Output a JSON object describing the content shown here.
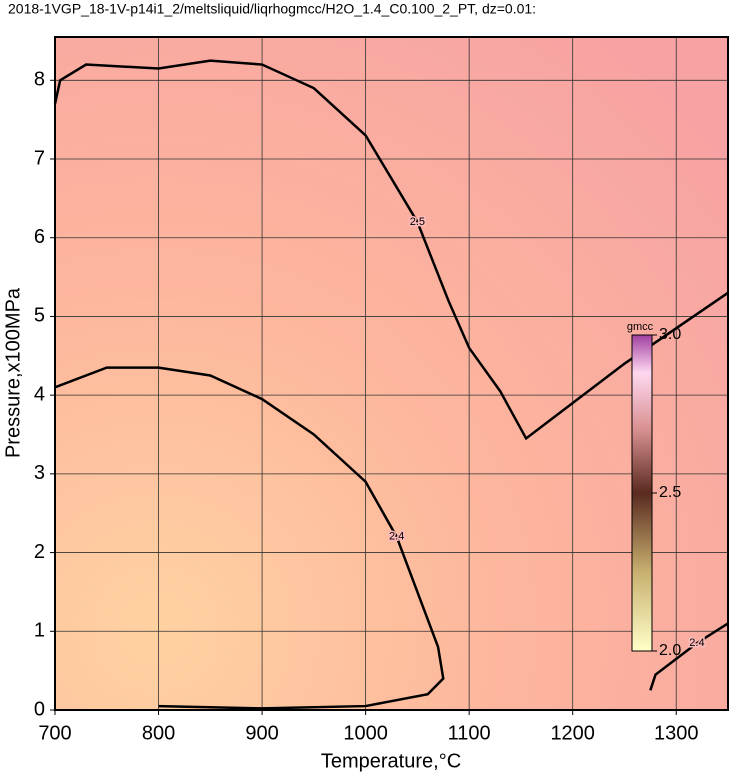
{
  "chart_data": {
    "type": "contour",
    "title": "2018-1VGP_18-1V-p14i1_2/meltsliquid/liqrhogmcc/H2O_1.4_C0.100_2_PT, dz=0.01:",
    "xlabel": "Temperature,°C",
    "ylabel": "Pressure,x100MPa",
    "xlim": [
      700,
      1350
    ],
    "ylim": [
      0,
      8.55
    ],
    "xticks": [
      700,
      800,
      900,
      1000,
      1100,
      1200,
      1300
    ],
    "yticks": [
      0,
      1,
      2,
      3,
      4,
      5,
      6,
      7,
      8
    ],
    "grid": true,
    "contours": [
      {
        "level": 2.5,
        "x": [
          700,
          705,
          730,
          800,
          850,
          900,
          950,
          1000,
          1050,
          1080,
          1100,
          1130,
          1155,
          1180,
          1250,
          1350
        ],
        "y": [
          7.7,
          8.0,
          8.2,
          8.15,
          8.25,
          8.2,
          7.9,
          7.3,
          6.2,
          5.2,
          4.6,
          4.05,
          3.45,
          3.7,
          4.4,
          5.3
        ]
      },
      {
        "level": 2.4,
        "x": [
          700,
          750,
          800,
          850,
          900,
          950,
          1000,
          1030,
          1050,
          1070,
          1075,
          1060,
          1000,
          900,
          800
        ],
        "y": [
          4.1,
          4.35,
          4.35,
          4.25,
          3.95,
          3.5,
          2.9,
          2.2,
          1.5,
          0.8,
          0.4,
          0.2,
          0.05,
          0.02,
          0.05
        ]
      },
      {
        "level": 2.4,
        "x": [
          1275,
          1280,
          1320,
          1350
        ],
        "y": [
          0.25,
          0.45,
          0.85,
          1.1
        ]
      }
    ],
    "colorbar": {
      "label": "gmcc",
      "lim": [
        2,
        3
      ],
      "ticks": [
        {
          "value": 2,
          "label": "2.0"
        },
        2.5,
        {
          "value": 3,
          "label": "3.0"
        }
      ]
    }
  }
}
